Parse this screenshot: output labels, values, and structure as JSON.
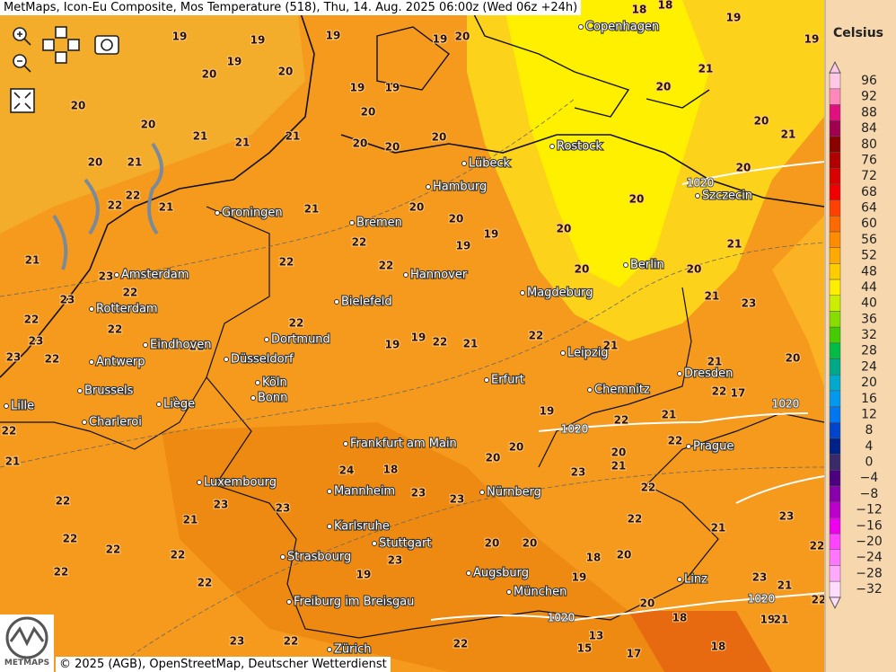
{
  "header": {
    "title": "MetMaps, Icon-Eu Composite, Mos Temperature (518), Thu, 14. Aug. 2025 06:00z (Wed 06z +24h)"
  },
  "legend": {
    "title": "Celsius",
    "entries": [
      {
        "label": "96",
        "color": "#ffc8e4"
      },
      {
        "label": "92",
        "color": "#ff88bb"
      },
      {
        "label": "88",
        "color": "#e0107f"
      },
      {
        "label": "84",
        "color": "#a0004f"
      },
      {
        "label": "80",
        "color": "#8b0000"
      },
      {
        "label": "76",
        "color": "#b00000"
      },
      {
        "label": "72",
        "color": "#d80000"
      },
      {
        "label": "68",
        "color": "#f00000"
      },
      {
        "label": "64",
        "color": "#ff4000"
      },
      {
        "label": "60",
        "color": "#ff6a00"
      },
      {
        "label": "56",
        "color": "#ff8c00"
      },
      {
        "label": "52",
        "color": "#ffaa00"
      },
      {
        "label": "48",
        "color": "#ffcc00"
      },
      {
        "label": "44",
        "color": "#ffee00"
      },
      {
        "label": "40",
        "color": "#ccee00"
      },
      {
        "label": "36",
        "color": "#88dd00"
      },
      {
        "label": "32",
        "color": "#44cc00"
      },
      {
        "label": "28",
        "color": "#00bb44"
      },
      {
        "label": "24",
        "color": "#00aa88"
      },
      {
        "label": "20",
        "color": "#00aacc"
      },
      {
        "label": "16",
        "color": "#0099ee"
      },
      {
        "label": "12",
        "color": "#0077ee"
      },
      {
        "label": "8",
        "color": "#0044cc"
      },
      {
        "label": "4",
        "color": "#002288"
      },
      {
        "label": "0",
        "color": "#3a2a6a"
      },
      {
        "label": "−4",
        "color": "#4b0080"
      },
      {
        "label": "−8",
        "color": "#8800aa"
      },
      {
        "label": "−12",
        "color": "#bb00cc"
      },
      {
        "label": "−16",
        "color": "#ee00ee"
      },
      {
        "label": "−20",
        "color": "#ff44ff"
      },
      {
        "label": "−24",
        "color": "#ff77ff"
      },
      {
        "label": "−28",
        "color": "#ffaaff"
      },
      {
        "label": "−32",
        "color": "#ffddff"
      }
    ]
  },
  "cities": [
    "Copenhagen",
    "Rostock",
    "Lübeck",
    "Hamburg",
    "Szczecin",
    "Groningen",
    "Bremen",
    "Berlin",
    "Amsterdam",
    "Hannover",
    "Bielefeld",
    "Magdeburg",
    "Rotterdam",
    "Eindhoven",
    "Dortmund",
    "Leipzig",
    "Antwerp",
    "Düsseldorf",
    "Dresden",
    "Köln",
    "Erfurt",
    "Brussels",
    "Chemnitz",
    "Bonn",
    "Liège",
    "Lille",
    "Charleroi",
    "Frankfurt am Main",
    "Prague",
    "Luxembourg",
    "Mannheim",
    "Nürnberg",
    "Karlsruhe",
    "Stuttgart",
    "Strasbourg",
    "Augsburg",
    "Linz",
    "München",
    "Freiburg im Breisgau",
    "Zürich"
  ],
  "isobar_labels": [
    "1020",
    "1020",
    "1020",
    "1020",
    "1020"
  ],
  "temperatures": [
    19,
    19,
    19,
    19,
    20,
    18,
    18,
    19,
    19,
    20,
    19,
    20,
    19,
    19,
    20,
    20,
    20,
    21,
    20,
    20,
    21,
    21,
    21,
    21,
    20,
    20,
    20,
    21,
    20,
    22,
    22,
    21,
    21,
    20,
    20,
    19,
    20,
    20,
    20,
    21,
    21,
    23,
    22,
    23,
    22,
    22,
    19,
    22,
    20,
    20,
    22,
    22,
    23,
    22,
    23,
    21,
    22,
    19,
    19,
    22,
    21,
    22,
    21,
    21,
    23,
    20,
    21,
    22,
    17,
    19,
    22,
    21,
    22,
    22,
    21,
    22,
    22,
    22,
    22,
    22,
    22,
    21,
    23,
    23,
    24,
    18,
    23,
    23,
    20,
    20,
    19,
    18,
    20,
    22,
    20,
    18,
    21,
    23,
    22,
    23,
    21,
    22,
    19,
    18,
    21,
    17,
    15,
    13,
    23,
    22,
    19,
    23,
    22,
    20,
    23,
    22,
    21,
    20,
    20
  ],
  "footer": {
    "credit": "© 2025 (AGB), OpenStreetMap, Deutscher Wetterdienst",
    "logo": "METMAPS"
  }
}
